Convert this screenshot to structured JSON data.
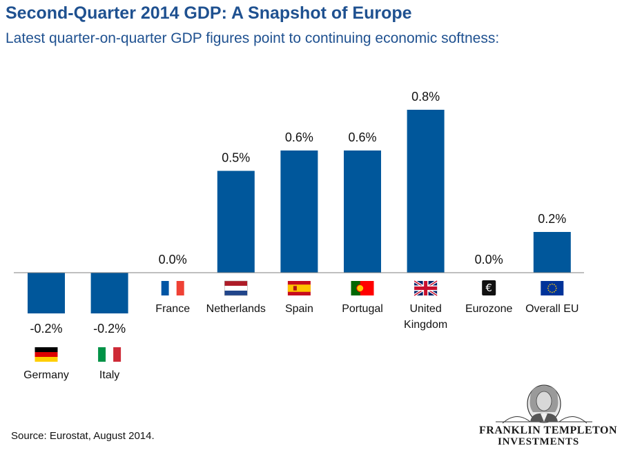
{
  "header": {
    "title": "Second-Quarter 2014 GDP: A Snapshot of Europe",
    "subtitle": "Latest quarter-on-quarter GDP figures point to continuing economic softness:"
  },
  "chart_data": {
    "type": "bar",
    "categories": [
      "Germany",
      "Italy",
      "France",
      "Netherlands",
      "Spain",
      "Portugal",
      "United Kingdom",
      "Eurozone",
      "Overall EU"
    ],
    "category_lines": [
      [
        "Germany"
      ],
      [
        "Italy"
      ],
      [
        "France"
      ],
      [
        "Netherlands"
      ],
      [
        "Spain"
      ],
      [
        "Portugal"
      ],
      [
        "United",
        "Kingdom"
      ],
      [
        "Eurozone"
      ],
      [
        "Overall EU"
      ]
    ],
    "values": [
      -0.2,
      -0.2,
      0.0,
      0.5,
      0.6,
      0.6,
      0.8,
      0.0,
      0.2
    ],
    "data_labels": [
      "-0.2%",
      "-0.2%",
      "0.0%",
      "0.5%",
      "0.6%",
      "0.6%",
      "0.8%",
      "0.0%",
      "0.2%"
    ],
    "flags": [
      "germany-flag",
      "italy-flag",
      "france-flag",
      "netherlands-flag",
      "spain-flag",
      "portugal-flag",
      "united-kingdom-flag",
      "euro-symbol",
      "eu-flag"
    ],
    "bar_color": "#00579b",
    "grid": false
  },
  "footer": {
    "source": "Source:  Eurostat, August 2014.",
    "logo_line1": "FRANKLIN TEMPLETON",
    "logo_line2": "INVESTMENTS"
  }
}
